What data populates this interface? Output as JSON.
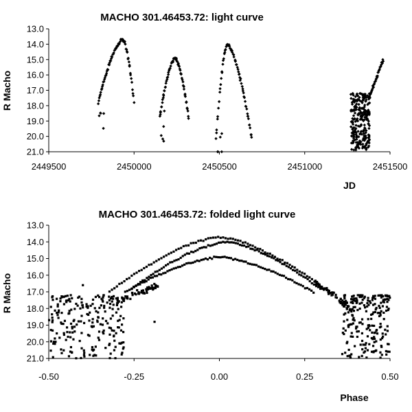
{
  "chart_data": [
    {
      "type": "scatter",
      "title": "MACHO 301.46453.72: light curve",
      "xlabel": "JD",
      "ylabel": "R Macho",
      "xlim": [
        2449500,
        2451500
      ],
      "ylim": [
        13.0,
        21.0
      ],
      "y_inverted": true,
      "grid": false,
      "legend": "none",
      "x_ticks": [
        "2449500",
        "2450000",
        "2450500",
        "2451000",
        "2451500"
      ],
      "y_ticks": [
        "13.0",
        "14.0",
        "15.0",
        "16.0",
        "17.0",
        "18.0",
        "19.0",
        "20.0",
        "21.0"
      ],
      "series": [
        {
          "marker": "diamond",
          "color": "#000000",
          "segments": [
            {
              "kind": "peak",
              "start": 2449790,
              "peak": 2449935,
              "end": 2450000,
              "peak_mag": 13.7,
              "base_mag": 17.8
            },
            {
              "kind": "peak",
              "start": 2450150,
              "peak": 2450240,
              "end": 2450320,
              "peak_mag": 14.9,
              "base_mag": 18.8
            },
            {
              "kind": "peak",
              "start": 2450480,
              "peak": 2450545,
              "end": 2450690,
              "peak_mag": 14.0,
              "base_mag": 20.2
            },
            {
              "kind": "cluster",
              "start": 2451270,
              "end": 2451380,
              "mag_min": 17.2,
              "mag_max": 20.9
            },
            {
              "kind": "rise",
              "start": 2451380,
              "end": 2451460,
              "mag_start": 17.4,
              "mag_end": 15.0
            }
          ]
        }
      ]
    },
    {
      "type": "scatter",
      "title": "MACHO 301.46453.72: folded light curve",
      "xlabel": "Phase",
      "ylabel": "R Macho",
      "xlim": [
        -0.5,
        0.5
      ],
      "ylim": [
        13.0,
        21.0
      ],
      "y_inverted": true,
      "grid": false,
      "legend": "none",
      "x_ticks": [
        "-0.50",
        "-0.25",
        "0.00",
        "0.25",
        "0.50"
      ],
      "y_ticks": [
        "13.0",
        "14.0",
        "15.0",
        "16.0",
        "17.0",
        "18.0",
        "19.0",
        "20.0",
        "21.0"
      ],
      "series": [
        {
          "marker": "square",
          "color": "#000000",
          "branches": [
            {
              "name_hidden": true,
              "peak_phase": 0.0,
              "peak_mag": 13.7,
              "half_width": 0.28,
              "edge_mag": 17.0
            },
            {
              "name_hidden": true,
              "peak_phase": 0.02,
              "peak_mag": 14.0,
              "half_width": 0.24,
              "edge_mag": 16.8
            },
            {
              "name_hidden": true,
              "peak_phase": 0.0,
              "peak_mag": 14.9,
              "half_width": 0.24,
              "edge_mag": 17.0
            }
          ],
          "faint_phase_ranges": [
            [
              -0.5,
              -0.28
            ],
            [
              0.36,
              0.5
            ]
          ],
          "faint_mag_range": [
            17.2,
            21.0
          ]
        }
      ]
    }
  ]
}
